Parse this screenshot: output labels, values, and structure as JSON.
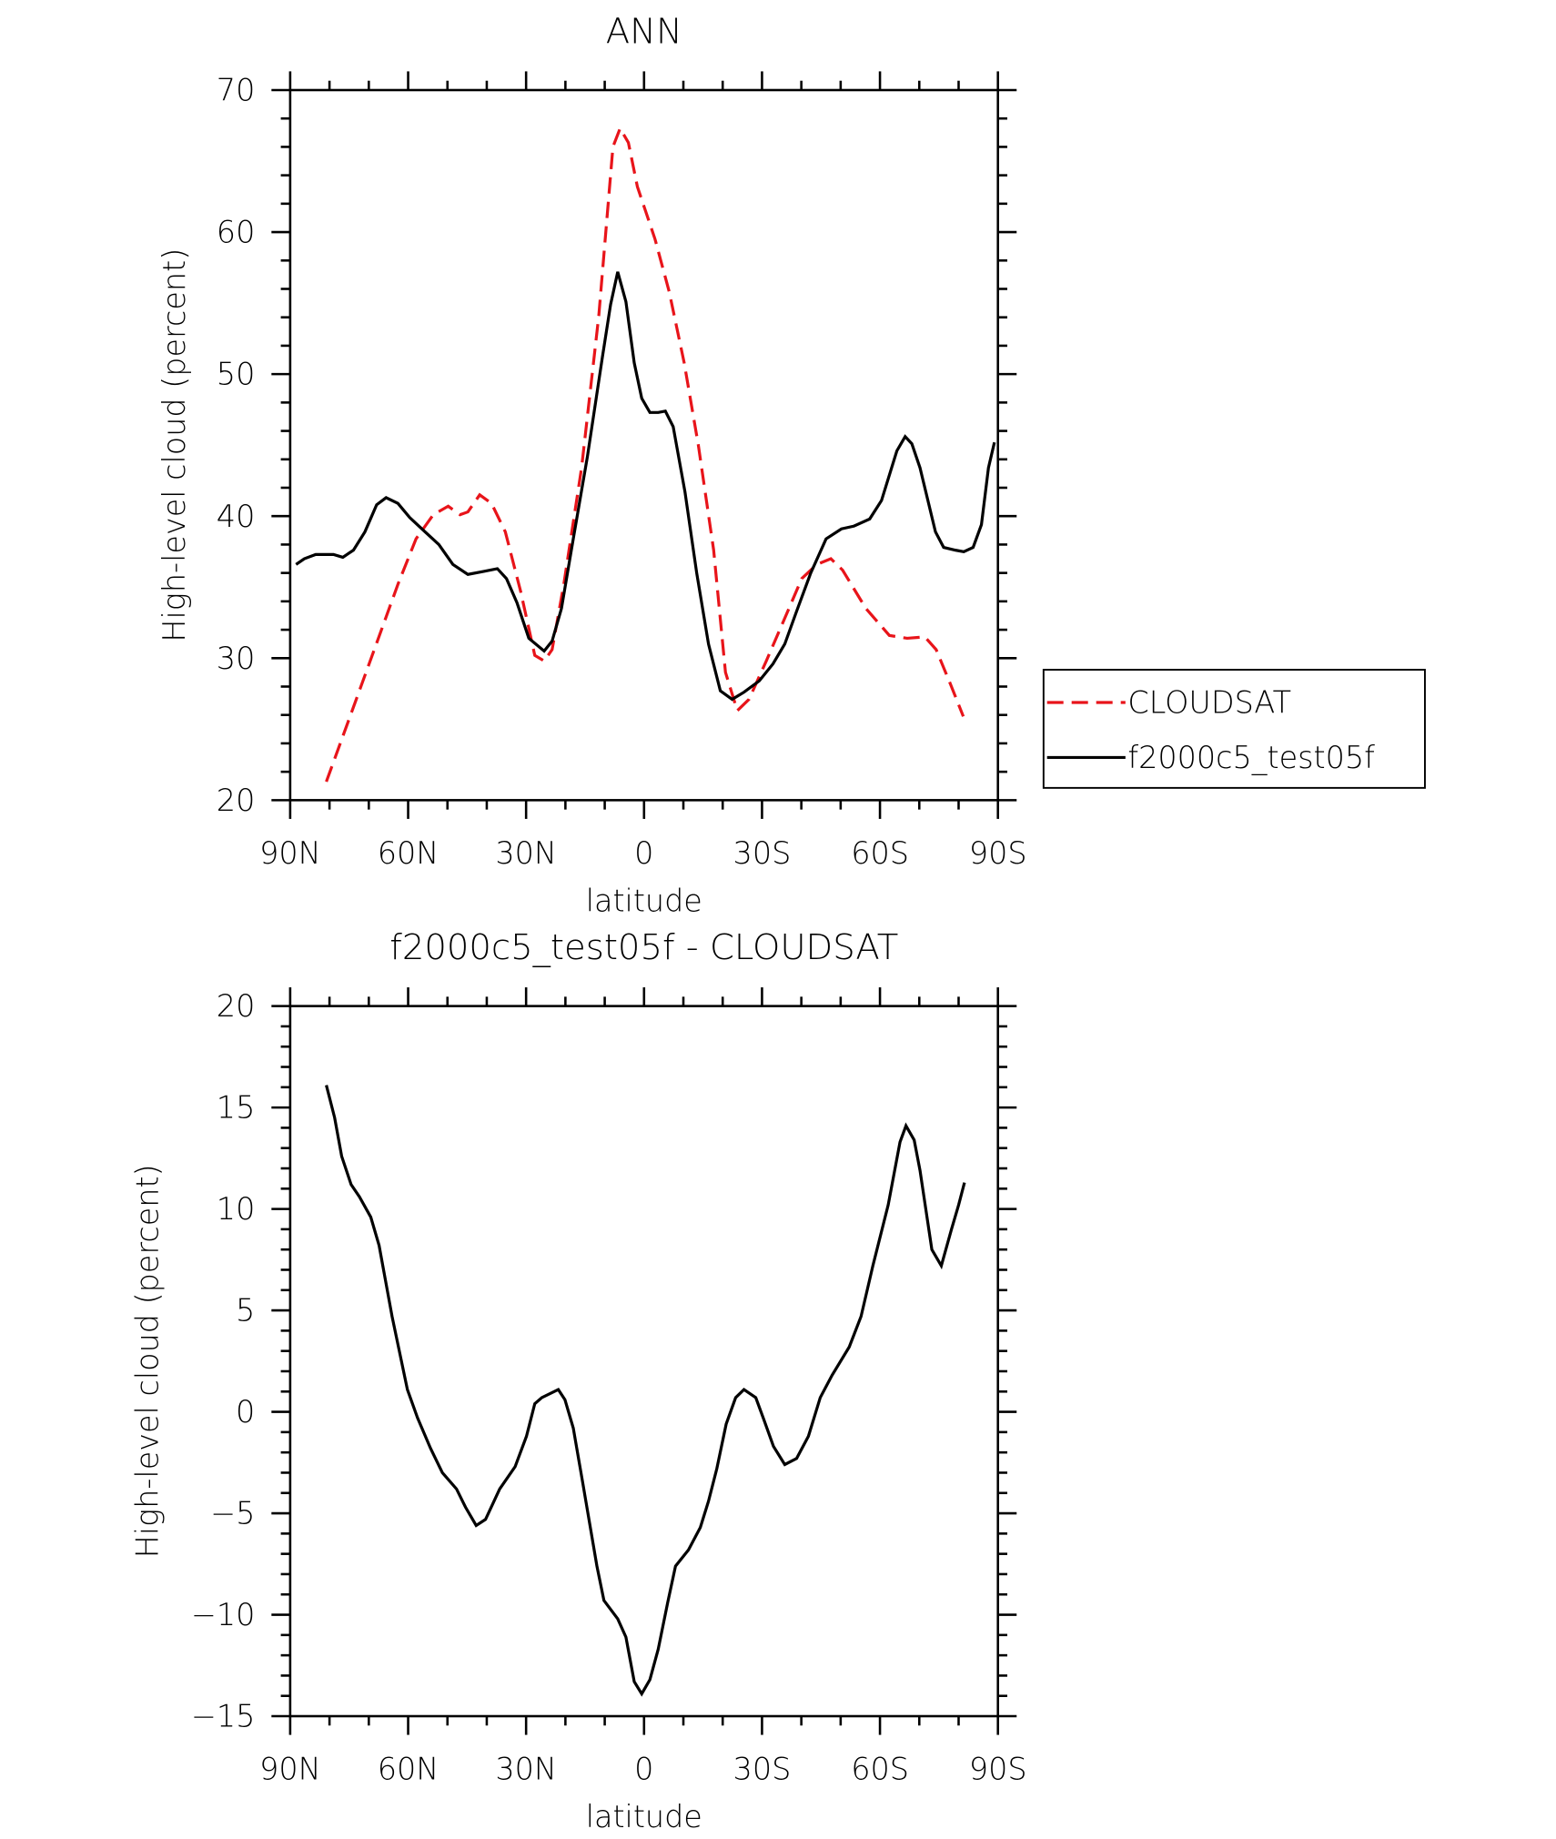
{
  "chart_data": [
    {
      "type": "line",
      "title": "ANN",
      "x_label": "latitude",
      "y_label": "High-level cloud (percent)",
      "xlim": [
        90,
        -90
      ],
      "xticks": [
        {
          "value": 90,
          "label": "90N"
        },
        {
          "value": 60,
          "label": "60N"
        },
        {
          "value": 30,
          "label": "30N"
        },
        0,
        {
          "value": -30,
          "label": "30S"
        },
        {
          "value": -60,
          "label": "60S"
        },
        {
          "value": -90,
          "label": "90S"
        }
      ],
      "xminorticks": [
        80,
        70,
        50,
        40,
        20,
        10,
        -10,
        -20,
        -40,
        -50,
        -70,
        -80
      ],
      "ylim": [
        20,
        70
      ],
      "yticks": [
        20,
        30,
        40,
        50,
        60,
        70
      ],
      "yminorticks": [
        22,
        24,
        26,
        28,
        32,
        34,
        36,
        38,
        42,
        44,
        46,
        48,
        52,
        54,
        56,
        58,
        62,
        64,
        66,
        68
      ],
      "grid": false,
      "legend": "right",
      "series": [
        {
          "name": "CLOUDSAT",
          "color": "#e8141a",
          "line_style": "dashed",
          "x": [
            80.8,
            74.5,
            68.6,
            62.6,
            58,
            53.6,
            49.8,
            46.8,
            44.8,
            41.8,
            38.8,
            35.3,
            31.4,
            27.8,
            25.4,
            23.4,
            20.4,
            15.9,
            11.5,
            7.9,
            6.1,
            4.0,
            1.7,
            -2.8,
            -6.4,
            -10.2,
            -13.8,
            -17.7,
            -20.7,
            -23.7,
            -26.7,
            -31.1,
            -35.6,
            -40.1,
            -43.9,
            -47.5,
            -50.5,
            -56.4,
            -62.4,
            -66.9,
            -71.4,
            -74.3,
            -77.9,
            -81.2
          ],
          "values": [
            21.3,
            26.1,
            30.6,
            35.2,
            38.4,
            40.1,
            40.7,
            40.1,
            40.3,
            41.5,
            40.9,
            38.9,
            34.7,
            30.2,
            29.8,
            30.6,
            35.2,
            43.4,
            54.1,
            66.0,
            67.3,
            66.3,
            63.2,
            59.5,
            55.8,
            50.8,
            45.0,
            37.6,
            29.0,
            26.3,
            27.1,
            29.8,
            32.7,
            35.6,
            36.6,
            37.0,
            36.2,
            33.5,
            31.6,
            31.4,
            31.5,
            30.6,
            28.2,
            25.9
          ]
        },
        {
          "name": "f2000c5_test05f",
          "color": "#000000",
          "line_style": "solid",
          "x": [
            88.5,
            86.4,
            83.5,
            79.0,
            76.6,
            73.9,
            71.0,
            68.0,
            65.6,
            62.6,
            59.6,
            56.1,
            52.2,
            48.6,
            44.8,
            40.9,
            37.3,
            35.0,
            32.3,
            29.3,
            25.4,
            23.4,
            21.0,
            18.0,
            14.4,
            10.6,
            8.5,
            6.7,
            4.6,
            2.5,
            0.6,
            -1.5,
            -3.6,
            -5.4,
            -7.4,
            -10.4,
            -13.4,
            -16.4,
            -19.4,
            -22.4,
            -25.4,
            -29.3,
            -32.8,
            -35.8,
            -38.8,
            -42.4,
            -46.3,
            -50.2,
            -53.4,
            -57.4,
            -60.4,
            -64.3,
            -66.4,
            -68.1,
            -70.2,
            -74.1,
            -76.2,
            -79.2,
            -81.3,
            -83.7,
            -85.8,
            -87.6,
            -89.1
          ],
          "values": [
            36.6,
            37.0,
            37.3,
            37.3,
            37.1,
            37.6,
            38.9,
            40.8,
            41.3,
            40.9,
            39.9,
            39.0,
            38.0,
            36.6,
            35.9,
            36.1,
            36.3,
            35.6,
            33.9,
            31.4,
            30.5,
            31.2,
            33.5,
            38.4,
            44.2,
            51.2,
            54.9,
            57.2,
            55.1,
            50.8,
            48.3,
            47.3,
            47.3,
            47.4,
            46.3,
            41.7,
            36.0,
            31.0,
            27.7,
            27.1,
            27.6,
            28.4,
            29.6,
            31.0,
            33.3,
            36.0,
            38.4,
            39.1,
            39.3,
            39.8,
            41.1,
            44.6,
            45.6,
            45.1,
            43.4,
            38.9,
            37.8,
            37.6,
            37.5,
            37.8,
            39.4,
            43.4,
            45.2
          ]
        }
      ]
    },
    {
      "type": "line",
      "title": "f2000c5_test05f - CLOUDSAT",
      "x_label": "latitude",
      "y_label": "High-level cloud (percent)",
      "xlim": [
        90,
        -90
      ],
      "xticks": [
        {
          "value": 90,
          "label": "90N"
        },
        {
          "value": 60,
          "label": "60N"
        },
        {
          "value": 30,
          "label": "30N"
        },
        0,
        {
          "value": -30,
          "label": "30S"
        },
        {
          "value": -60,
          "label": "60S"
        },
        {
          "value": -90,
          "label": "90S"
        }
      ],
      "xminorticks": [
        80,
        70,
        50,
        40,
        20,
        10,
        -10,
        -20,
        -40,
        -50,
        -70,
        -80
      ],
      "ylim": [
        -15,
        20
      ],
      "yticks": [
        {
          "value": -15,
          "label": "−15"
        },
        {
          "value": -10,
          "label": "−10"
        },
        {
          "value": -5,
          "label": "−5"
        },
        0,
        5,
        10,
        15,
        20
      ],
      "yminorticks": [
        -14,
        -13,
        -12,
        -11,
        -9,
        -8,
        -7,
        -6,
        -4,
        -3,
        -2,
        -1,
        1,
        2,
        3,
        4,
        6,
        7,
        8,
        9,
        11,
        12,
        13,
        14,
        16,
        17,
        18,
        19
      ],
      "grid": false,
      "series": [
        {
          "color": "#000000",
          "line_style": "solid",
          "x": [
            80.8,
            78.7,
            76.9,
            74.5,
            72.4,
            69.5,
            67.4,
            64.1,
            60.2,
            57.6,
            54.3,
            51.3,
            47.7,
            45.4,
            42.7,
            40.3,
            36.7,
            32.8,
            29.9,
            27.8,
            26.0,
            21.8,
            20.1,
            18.0,
            15.6,
            12.0,
            10.2,
            6.7,
            4.6,
            2.5,
            0.6,
            -1.5,
            -3.6,
            -6.0,
            -8.0,
            -11.3,
            -14.3,
            -16.4,
            -18.5,
            -20.9,
            -23.3,
            -25.4,
            -28.4,
            -30.5,
            -32.9,
            -35.8,
            -38.8,
            -41.8,
            -44.8,
            -47.8,
            -52.2,
            -55.2,
            -58.2,
            -62.1,
            -65.1,
            -66.6,
            -68.7,
            -70.2,
            -73.2,
            -75.6,
            -78.2,
            -80.0,
            -81.5
          ],
          "values": [
            16.1,
            14.5,
            12.6,
            11.2,
            10.6,
            9.6,
            8.2,
            4.7,
            1.1,
            -0.3,
            -1.8,
            -3.0,
            -3.8,
            -4.7,
            -5.6,
            -5.3,
            -3.8,
            -2.7,
            -1.2,
            0.4,
            0.7,
            1.1,
            0.6,
            -0.8,
            -3.5,
            -7.6,
            -9.3,
            -10.2,
            -11.1,
            -13.3,
            -13.9,
            -13.2,
            -11.7,
            -9.4,
            -7.6,
            -6.8,
            -5.7,
            -4.4,
            -2.8,
            -0.6,
            0.7,
            1.1,
            0.7,
            -0.4,
            -1.7,
            -2.6,
            -2.3,
            -1.2,
            0.7,
            1.8,
            3.2,
            4.7,
            7.2,
            10.2,
            13.3,
            14.1,
            13.4,
            11.9,
            8.0,
            7.2,
            9.0,
            10.2,
            11.3
          ]
        }
      ]
    }
  ]
}
